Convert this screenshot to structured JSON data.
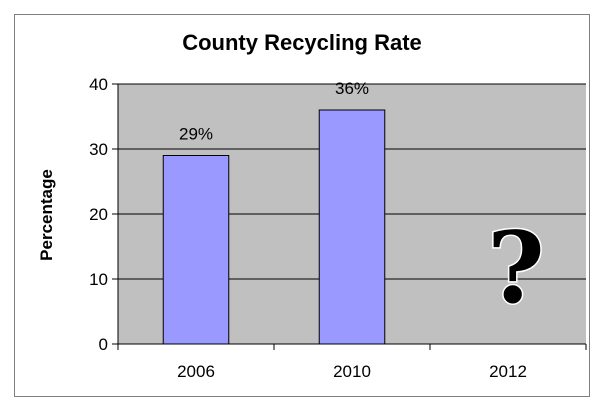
{
  "colors": {
    "plot_background": "#c0c0c0",
    "bar_fill": "#9999ff",
    "bar_stroke": "#000000",
    "gridline": "#000000",
    "frame": "#7f7f7f"
  },
  "chart_data": {
    "type": "bar",
    "title": "County Recycling Rate",
    "xlabel": "",
    "ylabel": "Percentage",
    "categories": [
      "2006",
      "2010",
      "2012"
    ],
    "values": [
      29,
      36,
      null
    ],
    "data_labels": [
      "29%",
      "36%",
      ""
    ],
    "ylim": [
      0,
      40
    ],
    "yticks": [
      0,
      10,
      20,
      30,
      40
    ],
    "grid": true,
    "legend": "none",
    "annotations": [
      {
        "category": "2012",
        "text": "?"
      }
    ]
  }
}
